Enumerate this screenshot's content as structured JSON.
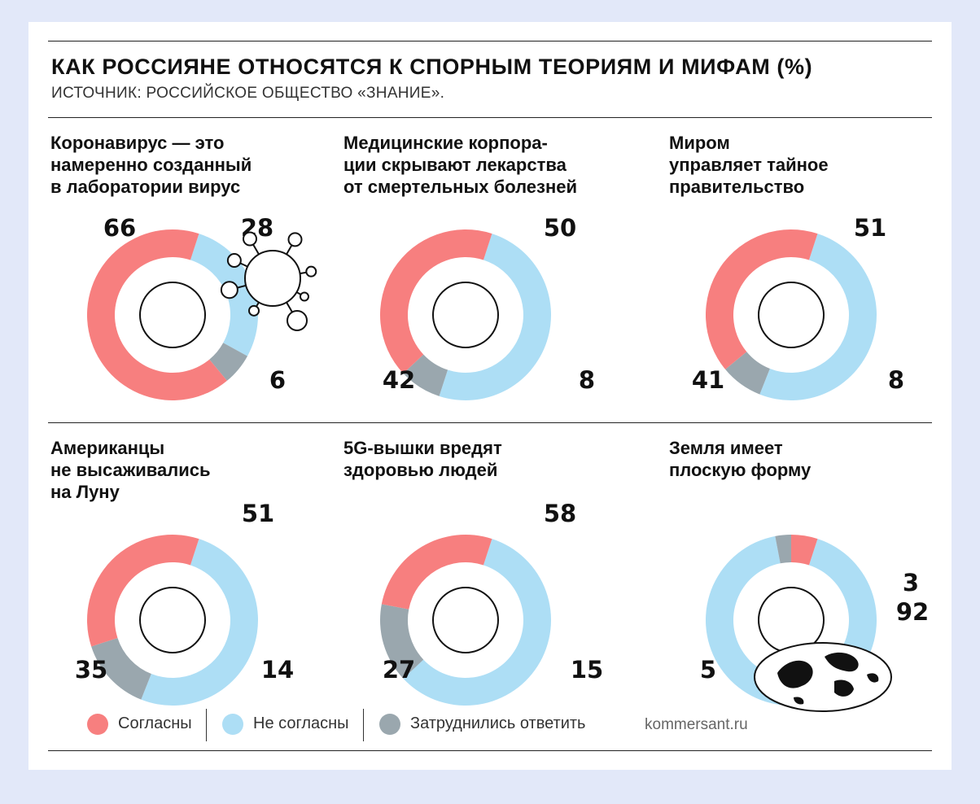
{
  "title": "КАК РОССИЯНЕ ОТНОСЯТСЯ К СПОРНЫМ ТЕОРИЯМ И МИФАМ (%)",
  "subtitle": "ИСТОЧНИК: РОССИЙСКОЕ ОБЩЕСТВО «ЗНАНИЕ».",
  "colors": {
    "agree": "#f77f7f",
    "disagree": "#addef5",
    "unsure": "#9aa7ae"
  },
  "legend": {
    "agree": "Согласны",
    "disagree": "Не согласны",
    "unsure": "Затруднились ответить"
  },
  "source_url": "kommersant.ru",
  "decorations": {
    "panel_1": "virus-icon",
    "panel_6": "globe-icon"
  },
  "chart_data": [
    {
      "type": "pie",
      "title": "Коронавирус — это\nнамеренно созданный\nв лаборатории вирус",
      "categories": [
        "Согласны",
        "Не согласны",
        "Затруднились ответить"
      ],
      "values": [
        66,
        28,
        6
      ],
      "labels": [
        "66",
        "28",
        "6"
      ]
    },
    {
      "type": "pie",
      "title": "Медицинские корпора-\nции скрывают лекарства\nот смертельных болезней",
      "categories": [
        "Согласны",
        "Не согласны",
        "Затруднились ответить"
      ],
      "values": [
        42,
        50,
        8
      ],
      "labels": [
        "42",
        "50",
        "8"
      ]
    },
    {
      "type": "pie",
      "title": "Миром\nуправляет тайное\nправительство",
      "categories": [
        "Согласны",
        "Не согласны",
        "Затруднились ответить"
      ],
      "values": [
        41,
        51,
        8
      ],
      "labels": [
        "41",
        "51",
        "8"
      ]
    },
    {
      "type": "pie",
      "title": "Американцы\nне высаживались\nна Луну",
      "categories": [
        "Согласны",
        "Не согласны",
        "Затруднились ответить"
      ],
      "values": [
        35,
        51,
        14
      ],
      "labels": [
        "35",
        "51",
        "14"
      ]
    },
    {
      "type": "pie",
      "title": "5G-вышки вредят\nздоровью людей",
      "categories": [
        "Согласны",
        "Не согласны",
        "Затруднились ответить"
      ],
      "values": [
        27,
        58,
        15
      ],
      "labels": [
        "27",
        "58",
        "15"
      ]
    },
    {
      "type": "pie",
      "title": "Земля имеет\nплоскую форму",
      "categories": [
        "Согласны",
        "Не согласны",
        "Затруднились ответить"
      ],
      "values": [
        5,
        92,
        3
      ],
      "labels": [
        "5",
        "92",
        "3"
      ]
    }
  ]
}
